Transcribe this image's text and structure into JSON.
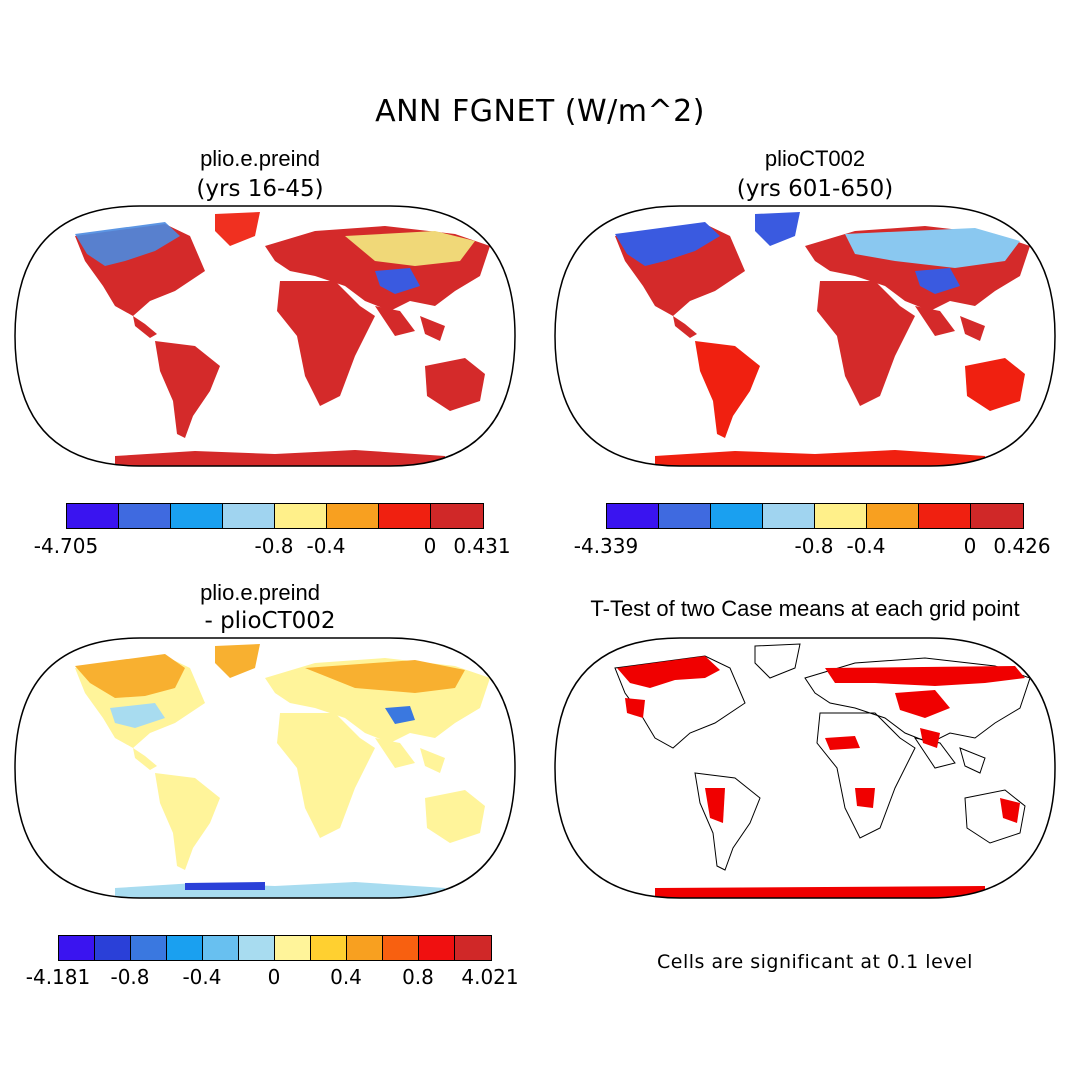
{
  "main_title": "ANN FGNET (W/m^2)",
  "panels": {
    "tl": {
      "title": "plio.e.preind",
      "subtitle": "(yrs 16-45)"
    },
    "tr": {
      "title": "plioCT002",
      "subtitle": "(yrs 601-650)"
    },
    "bl": {
      "title": "plio.e.preind",
      "subtitle": "- plioCT002"
    },
    "br": {
      "title": "T-Test of two Case means at each grid point",
      "note": "Cells are significant at 0.1 level"
    }
  },
  "colorbars": {
    "tl": {
      "colors": [
        "#3a14f0",
        "#3f6ae0",
        "#1aa0f0",
        "#a0d4f0",
        "#fff08a",
        "#f8a020",
        "#f02010",
        "#d02828"
      ],
      "labels": [
        "-4.705",
        "-0.8",
        "-0.4",
        "0",
        "0.431"
      ]
    },
    "tr": {
      "colors": [
        "#3a14f0",
        "#3f6ae0",
        "#1aa0f0",
        "#a0d4f0",
        "#fff08a",
        "#f8a020",
        "#f02010",
        "#d02828"
      ],
      "labels": [
        "-4.339",
        "-0.8",
        "-0.4",
        "0",
        "0.426"
      ]
    },
    "bl": {
      "colors": [
        "#3a14f0",
        "#2a40d8",
        "#3a78e0",
        "#1aa0f0",
        "#68c0f0",
        "#a8dcf0",
        "#fff49a",
        "#ffd030",
        "#f8a020",
        "#f86010",
        "#f01010",
        "#d02828"
      ],
      "labels": [
        "-4.181",
        "-0.8",
        "-0.4",
        "0",
        "0.4",
        "0.8",
        "4.021"
      ]
    }
  },
  "colors": {
    "land_warm": "#d42a2a",
    "land_bright": "#f02010",
    "land_neutral": "#fff49a",
    "significant": "#f00000"
  }
}
